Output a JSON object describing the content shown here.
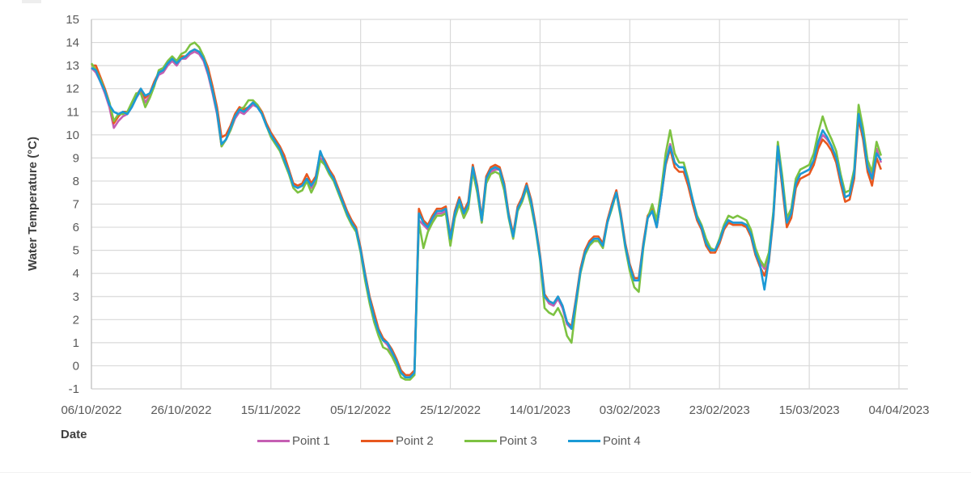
{
  "chart_data": {
    "type": "line",
    "title": "",
    "xlabel": "Date",
    "ylabel": "Water Temperature (°C)",
    "ylim": [
      -1,
      15
    ],
    "yticks": [
      -1,
      0,
      1,
      2,
      3,
      4,
      5,
      6,
      7,
      8,
      9,
      10,
      11,
      12,
      13,
      14,
      15
    ],
    "x_tick_labels": [
      "06/10/2022",
      "26/10/2022",
      "15/11/2022",
      "05/12/2022",
      "25/12/2022",
      "14/01/2023",
      "03/02/2023",
      "23/02/2023",
      "15/03/2023",
      "04/04/2023"
    ],
    "x_day_range": [
      0,
      182
    ],
    "grid": true,
    "legend_position": "bottom",
    "x_days_note": "x values are days since 06/10/2022",
    "x": [
      0,
      1,
      2,
      3,
      4,
      5,
      6,
      7,
      8,
      9,
      10,
      11,
      12,
      13,
      14,
      15,
      16,
      17,
      18,
      19,
      20,
      21,
      22,
      23,
      24,
      25,
      26,
      27,
      28,
      29,
      30,
      31,
      32,
      33,
      34,
      35,
      36,
      37,
      38,
      39,
      40,
      41,
      42,
      43,
      44,
      45,
      46,
      47,
      48,
      49,
      50,
      51,
      52,
      53,
      54,
      55,
      56,
      57,
      58,
      59,
      60,
      61,
      62,
      63,
      64,
      65,
      66,
      67,
      68,
      69,
      70,
      71,
      72,
      73,
      74,
      75,
      76,
      77,
      78,
      79,
      80,
      81,
      82,
      83,
      84,
      85,
      86,
      87,
      88,
      89,
      90,
      91,
      92,
      93,
      94,
      95,
      96,
      97,
      98,
      99,
      100,
      101,
      102,
      103,
      104,
      105,
      106,
      107,
      108,
      109,
      110,
      111,
      112,
      113,
      114,
      115,
      116,
      117,
      118,
      119,
      120,
      121,
      122,
      123,
      124,
      125,
      126,
      127,
      128,
      129,
      130,
      131,
      132,
      133,
      134,
      135,
      136,
      137,
      138,
      139,
      140,
      141,
      142,
      143,
      144,
      145,
      146,
      147,
      148,
      149,
      150,
      151,
      152,
      153,
      154,
      155,
      156,
      157,
      158,
      159,
      160,
      161,
      162,
      163,
      164,
      165,
      166,
      167,
      168,
      169,
      170,
      171,
      172,
      173,
      174,
      175,
      176,
      177,
      178,
      179,
      180,
      181,
      182
    ],
    "series": [
      {
        "name": "Point 1",
        "color": "#c55fb3",
        "values": [
          12.9,
          12.7,
          12.3,
          11.8,
          11.2,
          10.3,
          10.6,
          10.8,
          10.9,
          11.2,
          11.6,
          11.9,
          11.4,
          11.7,
          12.2,
          12.6,
          12.7,
          13.0,
          13.2,
          13.0,
          13.3,
          13.3,
          13.5,
          13.6,
          13.5,
          13.2,
          12.6,
          11.8,
          10.9,
          9.5,
          9.8,
          10.2,
          10.7,
          11.0,
          10.9,
          11.1,
          11.3,
          11.2,
          10.9,
          10.4,
          10.0,
          9.7,
          9.4,
          8.9,
          8.4,
          7.8,
          7.7,
          7.8,
          8.1,
          7.7,
          8.1,
          9.0,
          8.8,
          8.4,
          8.1,
          7.6,
          7.1,
          6.6,
          6.2,
          5.9,
          5.0,
          3.9,
          2.9,
          2.1,
          1.5,
          1.1,
          0.9,
          0.5,
          0.2,
          -0.3,
          -0.5,
          -0.5,
          -0.3,
          6.3,
          6.1,
          5.9,
          6.3,
          6.6,
          6.6,
          6.7,
          5.3,
          6.5,
          7.1,
          6.5,
          6.9,
          8.5,
          7.6,
          6.2,
          8.0,
          8.4,
          8.5,
          8.5,
          7.8,
          6.5,
          5.6,
          6.8,
          7.2,
          7.8,
          7.0,
          6.0,
          4.7,
          3.0,
          2.7,
          2.6,
          2.9,
          2.5,
          1.8,
          1.6,
          2.8,
          4.1,
          4.9,
          5.3,
          5.5,
          5.5,
          5.2,
          6.2,
          6.9,
          7.6,
          6.5,
          5.2,
          4.3,
          3.7,
          3.7,
          5.2,
          6.4,
          6.7,
          6.0,
          7.3,
          8.8,
          9.6,
          8.8,
          8.6,
          8.6,
          8.0,
          7.2,
          6.4,
          6.0,
          5.3,
          5.0,
          5.0,
          5.4,
          6.0,
          6.3,
          6.2,
          6.2,
          6.2,
          6.1,
          5.8,
          5.0,
          4.5,
          4.2,
          4.8,
          6.6,
          9.6,
          8.0,
          6.3,
          6.6,
          7.9,
          8.3,
          8.4,
          8.5,
          8.9,
          9.6,
          10.0,
          9.8,
          9.5,
          9.0,
          8.1,
          7.3,
          7.4,
          8.3,
          10.9,
          10.0,
          8.7,
          8.3,
          9.4,
          8.8
        ]
      },
      {
        "name": "Point 2",
        "color": "#e8581f",
        "values": [
          13.0,
          13.0,
          12.5,
          12.0,
          11.4,
          10.5,
          10.8,
          11.0,
          11.0,
          11.3,
          11.7,
          12.0,
          11.6,
          11.8,
          12.3,
          12.7,
          12.8,
          13.1,
          13.3,
          13.1,
          13.4,
          13.4,
          13.6,
          13.7,
          13.6,
          13.4,
          12.9,
          12.1,
          11.2,
          9.9,
          10.0,
          10.4,
          10.9,
          11.2,
          11.1,
          11.2,
          11.4,
          11.3,
          11.0,
          10.5,
          10.1,
          9.8,
          9.5,
          9.1,
          8.5,
          7.9,
          7.8,
          7.9,
          8.3,
          7.9,
          8.2,
          9.2,
          8.9,
          8.5,
          8.2,
          7.7,
          7.2,
          6.7,
          6.3,
          6.0,
          5.1,
          4.0,
          3.0,
          2.3,
          1.6,
          1.2,
          1.0,
          0.7,
          0.3,
          -0.2,
          -0.4,
          -0.4,
          -0.2,
          6.8,
          6.3,
          6.1,
          6.5,
          6.8,
          6.8,
          6.9,
          5.6,
          6.7,
          7.3,
          6.7,
          7.1,
          8.7,
          7.8,
          6.4,
          8.2,
          8.6,
          8.7,
          8.6,
          7.9,
          6.6,
          5.7,
          6.9,
          7.3,
          7.9,
          7.2,
          6.1,
          4.8,
          3.1,
          2.8,
          2.7,
          3.0,
          2.6,
          1.9,
          1.7,
          2.9,
          4.2,
          5.0,
          5.4,
          5.6,
          5.6,
          5.3,
          6.3,
          7.0,
          7.6,
          6.6,
          5.3,
          4.4,
          3.8,
          3.8,
          5.3,
          6.5,
          6.8,
          6.0,
          7.3,
          8.7,
          9.4,
          8.6,
          8.4,
          8.4,
          7.8,
          7.0,
          6.3,
          5.9,
          5.2,
          4.9,
          4.9,
          5.3,
          5.9,
          6.2,
          6.1,
          6.1,
          6.1,
          6.0,
          5.6,
          4.8,
          4.3,
          3.9,
          4.5,
          6.4,
          9.4,
          7.7,
          6.0,
          6.4,
          7.7,
          8.1,
          8.2,
          8.3,
          8.7,
          9.4,
          9.8,
          9.6,
          9.3,
          8.8,
          7.9,
          7.1,
          7.2,
          8.1,
          10.7,
          9.8,
          8.4,
          7.8,
          9.0,
          8.5
        ]
      },
      {
        "name": "Point 3",
        "color": "#7dc242",
        "values": [
          13.1,
          12.8,
          12.4,
          11.9,
          11.4,
          10.6,
          10.9,
          10.9,
          11.0,
          11.4,
          11.8,
          11.8,
          11.2,
          11.6,
          12.1,
          12.8,
          12.9,
          13.2,
          13.4,
          13.2,
          13.5,
          13.6,
          13.9,
          14.0,
          13.8,
          13.4,
          12.7,
          11.9,
          11.0,
          9.5,
          9.8,
          10.2,
          10.8,
          11.1,
          11.2,
          11.5,
          11.5,
          11.3,
          10.9,
          10.4,
          9.9,
          9.6,
          9.3,
          8.8,
          8.3,
          7.7,
          7.5,
          7.6,
          8.0,
          7.5,
          7.9,
          8.9,
          8.7,
          8.3,
          8.0,
          7.5,
          7.0,
          6.5,
          6.1,
          5.8,
          4.9,
          3.7,
          2.7,
          1.9,
          1.3,
          0.8,
          0.7,
          0.4,
          0.0,
          -0.5,
          -0.6,
          -0.6,
          -0.4,
          6.2,
          5.1,
          5.8,
          6.2,
          6.5,
          6.5,
          6.6,
          5.2,
          6.4,
          7.0,
          6.4,
          6.8,
          8.4,
          7.5,
          6.2,
          7.9,
          8.3,
          8.4,
          8.3,
          7.6,
          6.4,
          5.5,
          6.7,
          7.1,
          7.7,
          6.9,
          5.9,
          4.6,
          2.5,
          2.3,
          2.2,
          2.5,
          2.1,
          1.3,
          1.0,
          2.6,
          4.0,
          4.8,
          5.2,
          5.4,
          5.4,
          5.1,
          6.2,
          6.8,
          7.5,
          6.4,
          5.1,
          4.1,
          3.4,
          3.2,
          5.1,
          6.4,
          7.0,
          6.3,
          7.6,
          9.2,
          10.2,
          9.2,
          8.8,
          8.8,
          8.1,
          7.2,
          6.5,
          6.1,
          5.5,
          5.1,
          5.0,
          5.5,
          6.1,
          6.5,
          6.4,
          6.5,
          6.4,
          6.3,
          5.9,
          5.1,
          4.6,
          4.3,
          4.9,
          6.7,
          9.7,
          8.2,
          6.4,
          6.8,
          8.1,
          8.5,
          8.6,
          8.7,
          9.2,
          10.1,
          10.8,
          10.2,
          9.8,
          9.3,
          8.3,
          7.5,
          7.6,
          8.5,
          11.3,
          10.3,
          8.9,
          8.4,
          9.7,
          9.1
        ]
      },
      {
        "name": "Point 4",
        "color": "#1b9ad6",
        "values": [
          12.9,
          12.8,
          12.3,
          11.9,
          11.3,
          11.0,
          10.9,
          11.0,
          10.9,
          11.2,
          11.6,
          12.0,
          11.7,
          11.8,
          12.2,
          12.7,
          12.8,
          13.1,
          13.3,
          13.1,
          13.3,
          13.4,
          13.6,
          13.7,
          13.6,
          13.3,
          12.7,
          11.9,
          11.0,
          9.6,
          9.8,
          10.3,
          10.8,
          11.1,
          11.0,
          11.2,
          11.4,
          11.2,
          10.9,
          10.4,
          10.0,
          9.7,
          9.4,
          8.9,
          8.4,
          7.8,
          7.7,
          7.8,
          8.1,
          7.8,
          8.1,
          9.3,
          8.8,
          8.4,
          8.1,
          7.6,
          7.1,
          6.6,
          6.2,
          5.9,
          5.0,
          3.9,
          2.9,
          2.1,
          1.5,
          1.1,
          1.0,
          0.6,
          0.2,
          -0.3,
          -0.5,
          -0.5,
          -0.3,
          6.6,
          6.2,
          6.0,
          6.4,
          6.7,
          6.7,
          6.8,
          5.5,
          6.6,
          7.2,
          6.6,
          7.0,
          8.6,
          7.7,
          6.3,
          8.1,
          8.5,
          8.6,
          8.5,
          7.8,
          6.5,
          5.6,
          6.8,
          7.2,
          7.8,
          7.1,
          6.0,
          4.7,
          3.0,
          2.8,
          2.7,
          3.0,
          2.6,
          1.9,
          1.6,
          2.8,
          4.1,
          4.9,
          5.3,
          5.5,
          5.5,
          5.2,
          6.2,
          6.9,
          7.5,
          6.5,
          5.2,
          4.3,
          3.7,
          3.7,
          5.2,
          6.4,
          6.7,
          6.0,
          7.3,
          8.8,
          9.5,
          8.8,
          8.6,
          8.6,
          8.0,
          7.2,
          6.4,
          6.0,
          5.3,
          5.0,
          5.0,
          5.4,
          6.0,
          6.3,
          6.2,
          6.2,
          6.2,
          6.1,
          5.7,
          4.9,
          4.4,
          3.3,
          4.6,
          6.5,
          9.5,
          7.9,
          6.2,
          6.6,
          7.9,
          8.3,
          8.4,
          8.5,
          8.9,
          9.7,
          10.2,
          9.9,
          9.5,
          9.0,
          8.1,
          7.3,
          7.4,
          8.3,
          10.9,
          10.0,
          8.6,
          8.1,
          9.2,
          8.9
        ]
      }
    ]
  }
}
